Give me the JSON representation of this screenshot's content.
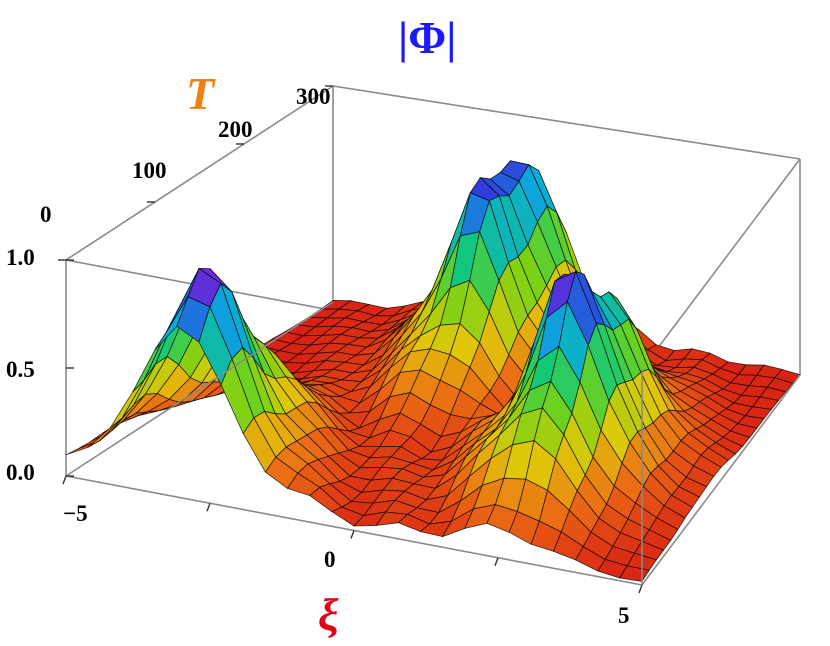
{
  "chart_data": {
    "type": "surface3d",
    "title": "|Φ|",
    "xlabel": "ξ",
    "ylabel": "T",
    "zlabel": "",
    "xlim": [
      -5,
      5
    ],
    "ylim": [
      0,
      300
    ],
    "zlim": [
      0,
      1
    ],
    "x_ticks": [
      "−5",
      "0",
      "5"
    ],
    "y_ticks": [
      "0",
      "100",
      "200",
      "300"
    ],
    "z_ticks": [
      "0.0",
      "0.5",
      "1.0"
    ],
    "peaks": [
      {
        "xi": -3.0,
        "t": 20,
        "amplitude": 1.0
      },
      {
        "xi": -0.6,
        "t": 250,
        "amplitude": 1.0
      },
      {
        "xi": 2.6,
        "t": 120,
        "amplitude": 1.0
      }
    ],
    "colormap": "rainbow (red low → violet high)",
    "mesh": true,
    "grid": false
  },
  "colors": {
    "title": "#1a1aff",
    "xlabel": "#e0001a",
    "ylabel": "#f07f0f",
    "box": "#8a8a8a",
    "mesh": "#000000"
  }
}
